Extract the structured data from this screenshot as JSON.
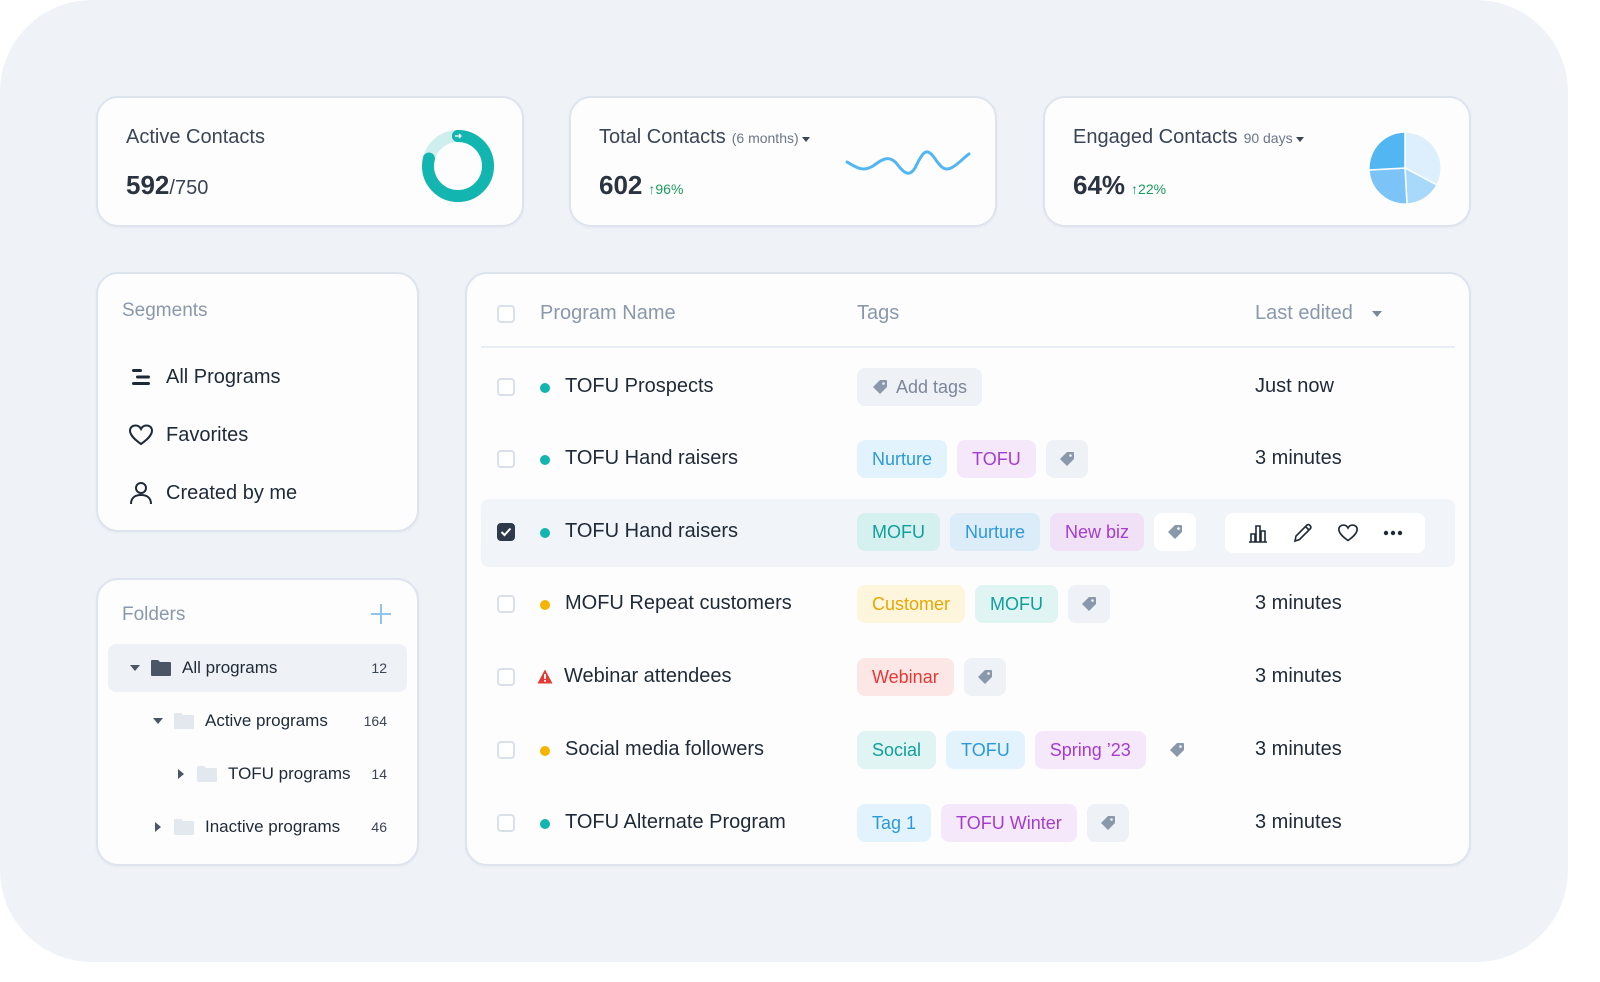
{
  "colors": {
    "teal": "#12b5b0",
    "amber": "#f4b400",
    "red": "#e53935",
    "green": "#1a9b5b"
  },
  "stats": {
    "active": {
      "title": "Active Contacts",
      "value": "592",
      "denom": "/750",
      "fraction": 0.789
    },
    "total": {
      "title": "Total Contacts",
      "period": "(6 months)",
      "value": "602",
      "change": "96%"
    },
    "engaged": {
      "title": "Engaged Contacts",
      "period": "90 days",
      "value": "64%",
      "change": "22%"
    }
  },
  "segments": {
    "title": "Segments",
    "items": [
      {
        "label": "All Programs",
        "icon": "list-icon"
      },
      {
        "label": "Favorites",
        "icon": "heart-icon"
      },
      {
        "label": "Created by me",
        "icon": "user-icon"
      }
    ]
  },
  "folders": {
    "title": "Folders",
    "items": [
      {
        "label": "All programs",
        "count": "12"
      },
      {
        "label": "Active programs",
        "count": "164"
      },
      {
        "label": "TOFU programs",
        "count": "14"
      },
      {
        "label": "Inactive programs",
        "count": "46"
      }
    ]
  },
  "table": {
    "headers": {
      "name": "Program Name",
      "tags": "Tags",
      "edited": "Last edited"
    },
    "rows": [
      {
        "name": "TOFU Prospects",
        "status": "teal",
        "tags": [
          {
            "label": "Add tags",
            "style": "add"
          }
        ],
        "edited": "Just now"
      },
      {
        "name": "TOFU Hand raisers",
        "status": "teal",
        "tags": [
          {
            "label": "Nurture",
            "style": "blue"
          },
          {
            "label": "TOFU",
            "style": "purple"
          }
        ],
        "edited": "3 minutes"
      },
      {
        "name": "TOFU Hand raisers",
        "status": "teal",
        "selected": true,
        "tags": [
          {
            "label": "MOFU",
            "style": "teal"
          },
          {
            "label": "Nurture",
            "style": "blue"
          },
          {
            "label": "New biz",
            "style": "purple"
          }
        ],
        "edited": ""
      },
      {
        "name": "MOFU Repeat customers",
        "status": "amber",
        "tags": [
          {
            "label": "Customer",
            "style": "yellow"
          },
          {
            "label": "MOFU",
            "style": "teal"
          }
        ],
        "edited": "3 minutes"
      },
      {
        "name": "Webinar attendees",
        "status": "warning",
        "tags": [
          {
            "label": "Webinar",
            "style": "red"
          }
        ],
        "edited": "3 minutes"
      },
      {
        "name": "Social media followers",
        "status": "amber",
        "tags": [
          {
            "label": "Social",
            "style": "teal"
          },
          {
            "label": "TOFU",
            "style": "blue"
          },
          {
            "label": "Spring ’23",
            "style": "purple"
          }
        ],
        "edited": "3 minutes",
        "plainTagIcon": true
      },
      {
        "name": "TOFU Alternate Program",
        "status": "teal",
        "tags": [
          {
            "label": "Tag 1",
            "style": "blue"
          },
          {
            "label": "TOFU Winter",
            "style": "purple"
          }
        ],
        "edited": "3 minutes"
      }
    ]
  }
}
